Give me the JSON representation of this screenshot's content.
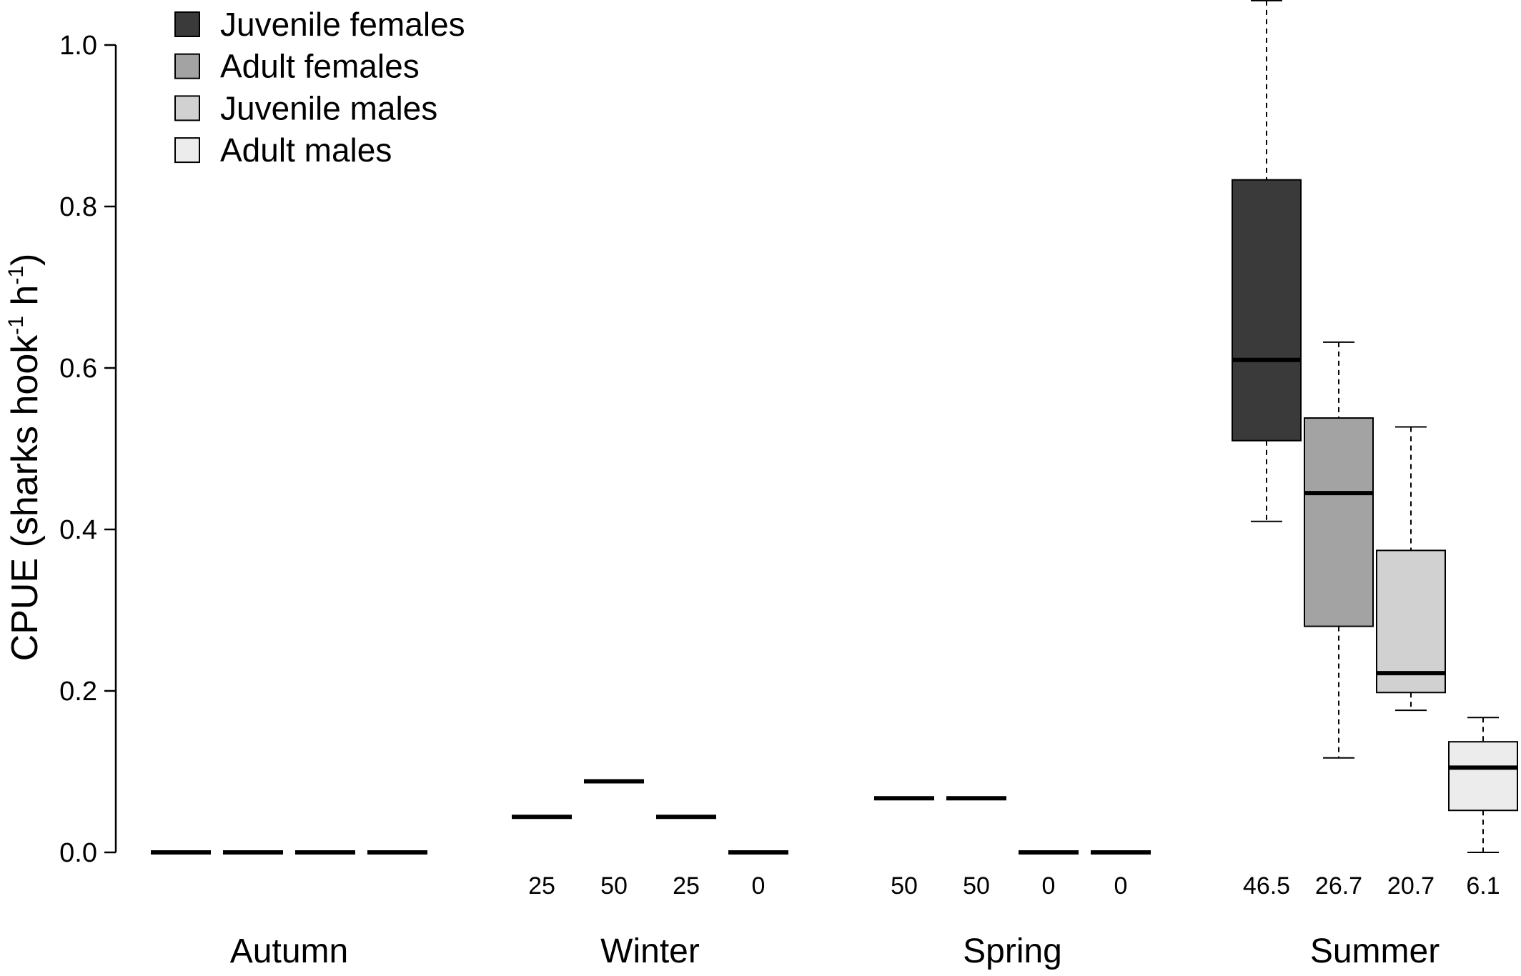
{
  "chart_data": {
    "type": "box",
    "ylabel_main": "CPUE (sharks hook",
    "ylabel_sup1": "-1",
    "ylabel_mid": " h",
    "ylabel_sup2": "-1",
    "ylabel_close": ")",
    "ylim": [
      0,
      1.05
    ],
    "yticks": [
      "0.0",
      "0.2",
      "0.4",
      "0.6",
      "0.8",
      "1.0"
    ],
    "ytick_values": [
      0,
      0.2,
      0.4,
      0.6,
      0.8,
      1.0
    ],
    "legend": {
      "position": "top-left",
      "entries": [
        {
          "name": "Juvenile females",
          "color": "#3a3a3a"
        },
        {
          "name": "Adult females",
          "color": "#a3a3a3"
        },
        {
          "name": "Juvenile males",
          "color": "#d1d1d1"
        },
        {
          "name": "Adult males",
          "color": "#ececec"
        }
      ]
    },
    "categories": [
      "Autumn",
      "Winter",
      "Spring",
      "Summer"
    ],
    "groups": [
      {
        "season": "Autumn",
        "boxes": [
          {
            "group": "Juvenile females",
            "median": 0,
            "q1": 0,
            "q3": 0,
            "whisker_low": 0,
            "whisker_high": 0,
            "pct": ""
          },
          {
            "group": "Adult females",
            "median": 0,
            "q1": 0,
            "q3": 0,
            "whisker_low": 0,
            "whisker_high": 0,
            "pct": ""
          },
          {
            "group": "Juvenile males",
            "median": 0,
            "q1": 0,
            "q3": 0,
            "whisker_low": 0,
            "whisker_high": 0,
            "pct": ""
          },
          {
            "group": "Adult males",
            "median": 0,
            "q1": 0,
            "q3": 0,
            "whisker_low": 0,
            "whisker_high": 0,
            "pct": ""
          }
        ]
      },
      {
        "season": "Winter",
        "boxes": [
          {
            "group": "Juvenile females",
            "median": 0.044,
            "q1": 0.044,
            "q3": 0.044,
            "whisker_low": 0.044,
            "whisker_high": 0.044,
            "pct": "25"
          },
          {
            "group": "Adult females",
            "median": 0.088,
            "q1": 0.088,
            "q3": 0.088,
            "whisker_low": 0.088,
            "whisker_high": 0.088,
            "pct": "50"
          },
          {
            "group": "Juvenile males",
            "median": 0.044,
            "q1": 0.044,
            "q3": 0.044,
            "whisker_low": 0.044,
            "whisker_high": 0.044,
            "pct": "25"
          },
          {
            "group": "Adult males",
            "median": 0,
            "q1": 0,
            "q3": 0,
            "whisker_low": 0,
            "whisker_high": 0,
            "pct": "0"
          }
        ]
      },
      {
        "season": "Spring",
        "boxes": [
          {
            "group": "Juvenile females",
            "median": 0.067,
            "q1": 0.067,
            "q3": 0.067,
            "whisker_low": 0.067,
            "whisker_high": 0.067,
            "pct": "50"
          },
          {
            "group": "Adult females",
            "median": 0.067,
            "q1": 0.067,
            "q3": 0.067,
            "whisker_low": 0.067,
            "whisker_high": 0.067,
            "pct": "50"
          },
          {
            "group": "Juvenile males",
            "median": 0,
            "q1": 0,
            "q3": 0,
            "whisker_low": 0,
            "whisker_high": 0,
            "pct": "0"
          },
          {
            "group": "Adult males",
            "median": 0,
            "q1": 0,
            "q3": 0,
            "whisker_low": 0,
            "whisker_high": 0,
            "pct": "0"
          }
        ]
      },
      {
        "season": "Summer",
        "boxes": [
          {
            "group": "Juvenile females",
            "median": 0.61,
            "q1": 0.51,
            "q3": 0.833,
            "whisker_low": 0.41,
            "whisker_high": 1.055,
            "pct": "46.5"
          },
          {
            "group": "Adult females",
            "median": 0.445,
            "q1": 0.28,
            "q3": 0.538,
            "whisker_low": 0.117,
            "whisker_high": 0.632,
            "pct": "26.7"
          },
          {
            "group": "Juvenile males",
            "median": 0.222,
            "q1": 0.198,
            "q3": 0.374,
            "whisker_low": 0.176,
            "whisker_high": 0.527,
            "pct": "20.7"
          },
          {
            "group": "Adult males",
            "median": 0.105,
            "q1": 0.052,
            "q3": 0.137,
            "whisker_low": 0,
            "whisker_high": 0.167,
            "pct": "6.1"
          }
        ]
      }
    ]
  }
}
